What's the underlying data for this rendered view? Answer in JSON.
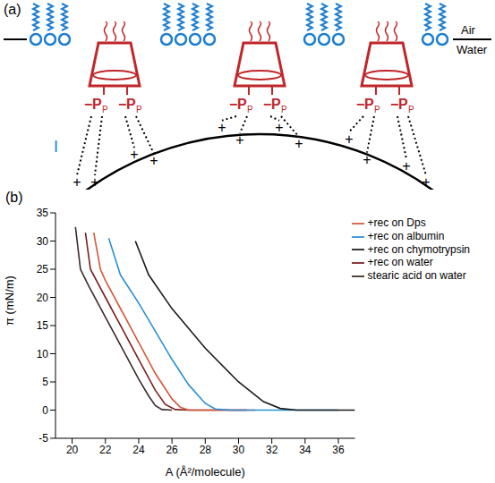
{
  "diagram": {
    "label": "(a)",
    "air": "Air",
    "water": "Water",
    "phosphate": "P",
    "charge_negative": "−",
    "charge_positive": "+",
    "scale_mark": "I"
  },
  "chart_data": {
    "type": "line",
    "label": "(b)",
    "x_label": "A (Å²/molecule)",
    "y_label": "π (mN/m)",
    "xlim": [
      19,
      37
    ],
    "xticks": [
      20,
      22,
      24,
      26,
      28,
      30,
      32,
      34,
      36
    ],
    "ylim": [
      -5,
      35
    ],
    "yticks": [
      -5,
      0,
      5,
      10,
      15,
      20,
      25,
      30,
      35
    ],
    "legend": "upper right",
    "series": [
      {
        "name": "stearic acid on water",
        "color": "#3b2a2a",
        "x": [
          20.2,
          20.5,
          21,
          22,
          23,
          24,
          24.6,
          25,
          25.4,
          26
        ],
        "values": [
          32.5,
          25,
          22,
          16.5,
          11,
          5.5,
          2.5,
          0.8,
          0.1,
          0
        ]
      },
      {
        "name": "+rec on water",
        "color": "#7a1f1f",
        "x": [
          20.8,
          21.1,
          22,
          23,
          24,
          25,
          25.6,
          26.2,
          27,
          30.5
        ],
        "values": [
          31.5,
          25,
          20,
          14.5,
          9,
          3.5,
          1,
          0.1,
          0,
          0
        ]
      },
      {
        "name": "+rec on Dps",
        "color": "#d4583a",
        "x": [
          21.3,
          21.7,
          22,
          23,
          24,
          25,
          26,
          26.5,
          27,
          31
        ],
        "values": [
          31.5,
          25,
          23,
          17.5,
          12,
          6.5,
          2,
          0.5,
          0,
          0
        ]
      },
      {
        "name": "+rec on albumin",
        "color": "#2b8fd4",
        "x": [
          22.2,
          22.9,
          24,
          25,
          26,
          27,
          28,
          28.6,
          29.5,
          36
        ],
        "values": [
          30.5,
          24,
          19,
          14,
          9,
          4.5,
          1.2,
          0.2,
          0,
          0
        ]
      },
      {
        "name": "+rec on chymotrypsin",
        "color": "#1a1a1a",
        "x": [
          23.8,
          24.6,
          26,
          28,
          30,
          31.5,
          32.5,
          33.5,
          37
        ],
        "values": [
          30,
          24,
          18,
          11,
          5,
          1.5,
          0.3,
          0,
          0
        ]
      }
    ]
  }
}
